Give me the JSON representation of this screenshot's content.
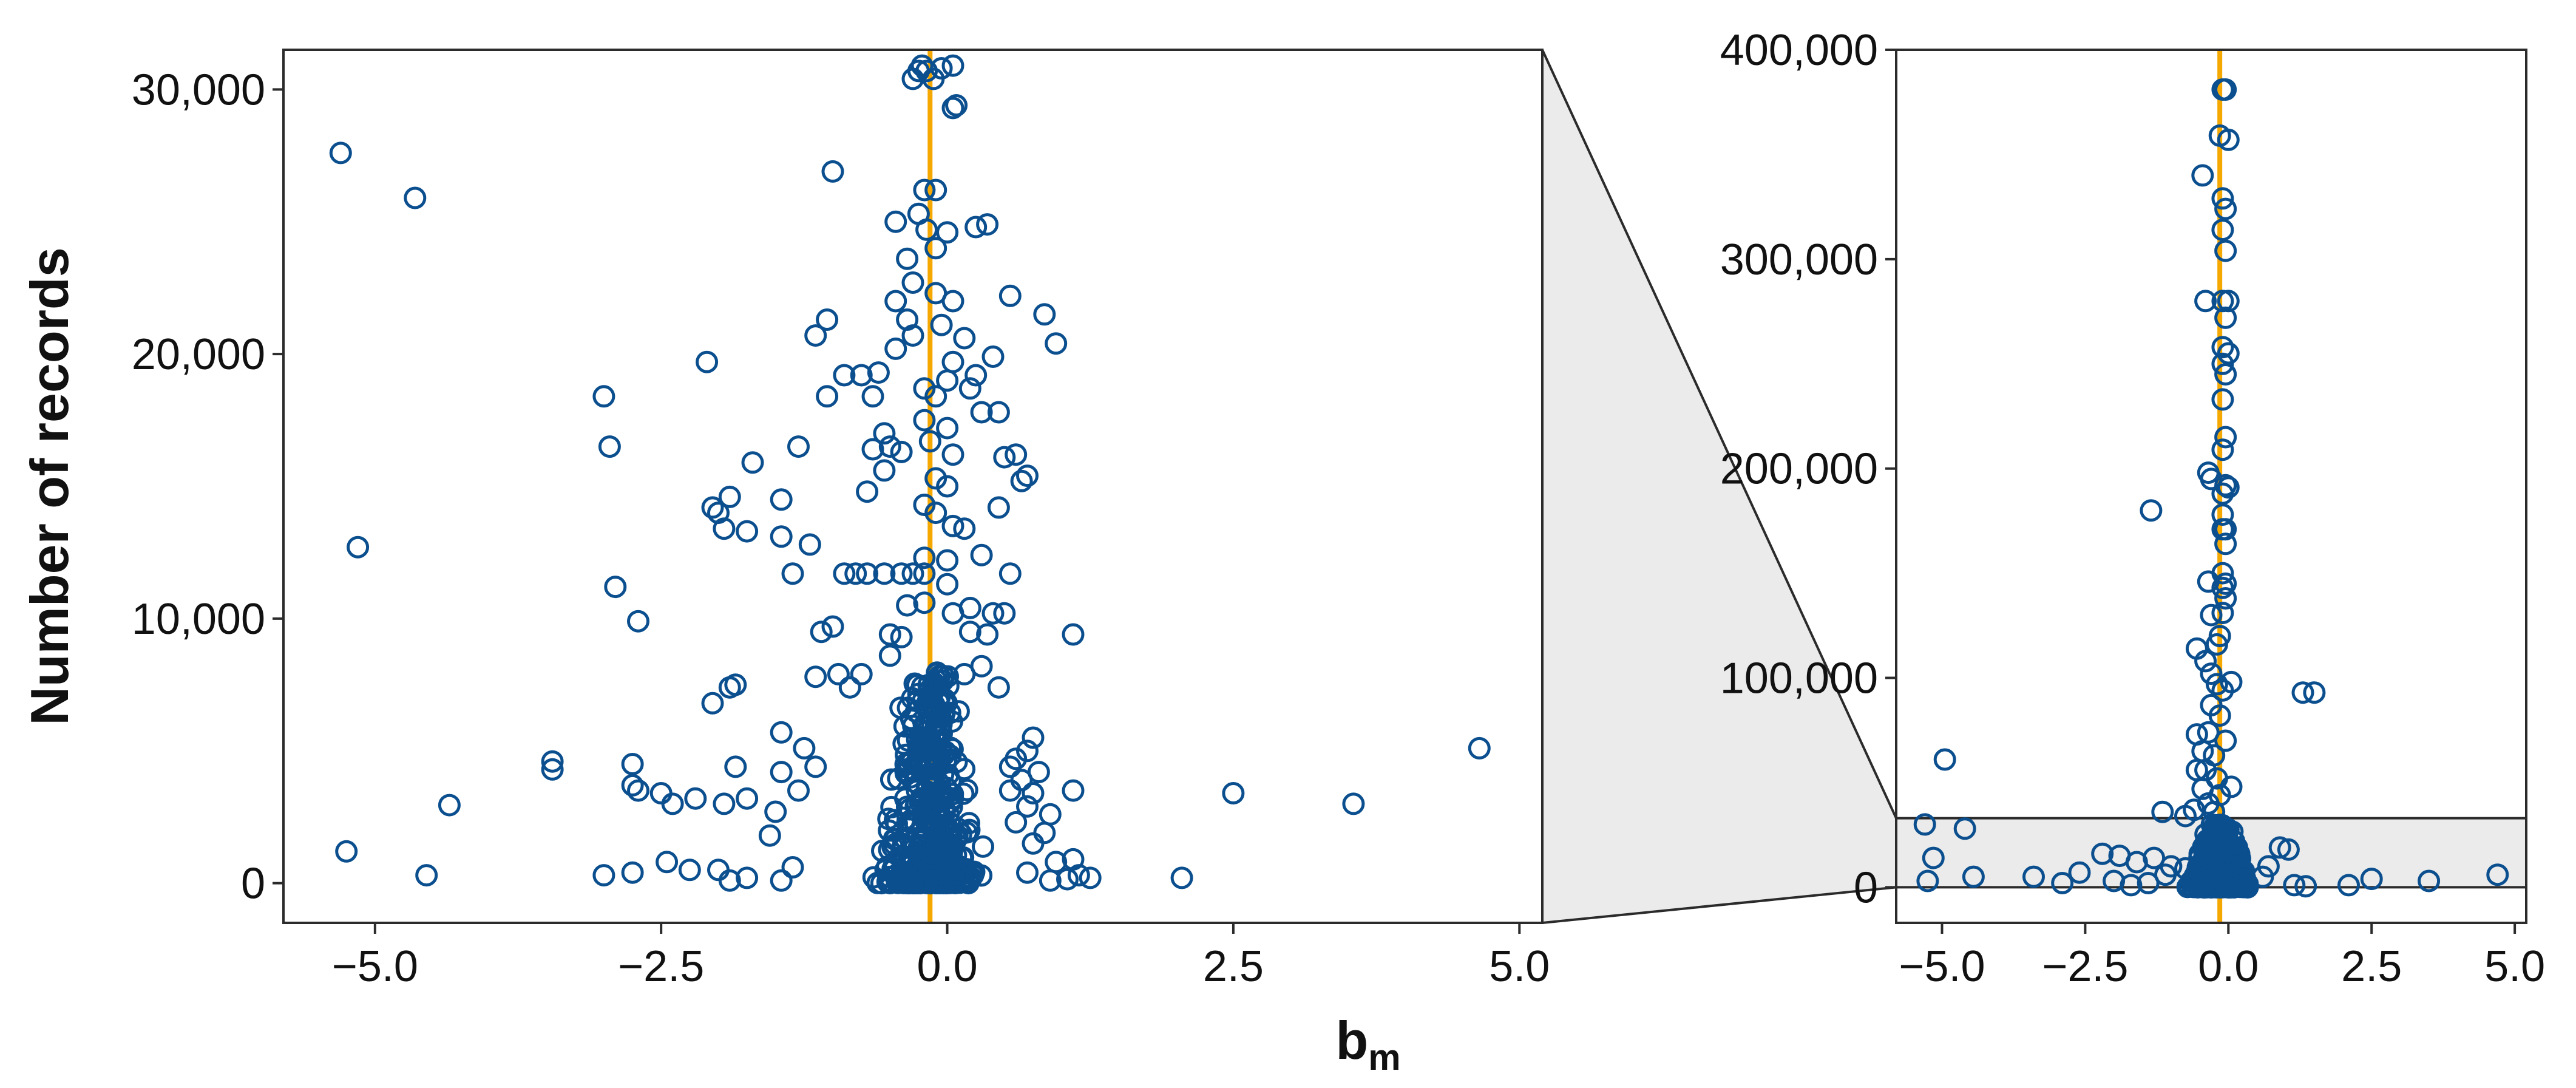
{
  "colors": {
    "points": "#0b4f8f",
    "reference_line": "#f5a800",
    "zoom_fill": "#ebebeb",
    "frame": "#2b2b2b"
  },
  "labels": {
    "ylabel": "Number of records",
    "xlabel_main": "b",
    "xlabel_sub": "m"
  },
  "chart_data": [
    {
      "type": "scatter",
      "panel": "left (zoomed detail)",
      "xlim": [
        -5.8,
        5.2
      ],
      "ylim": [
        -1500,
        31500
      ],
      "x_ticks": [
        -5.0,
        -2.5,
        0.0,
        2.5,
        5.0
      ],
      "x_tick_labels": [
        "−5.0",
        "−2.5",
        "0.0",
        "2.5",
        "5.0"
      ],
      "y_ticks": [
        0,
        10000,
        20000,
        30000
      ],
      "y_tick_labels": [
        "0",
        "10,000",
        "20,000",
        "30,000"
      ],
      "vline_x": -0.15,
      "grid": false,
      "points": [
        [
          -5.3,
          27600
        ],
        [
          -4.65,
          25900
        ],
        [
          -5.15,
          12700
        ],
        [
          -5.25,
          1200
        ],
        [
          -4.55,
          300
        ],
        [
          -4.35,
          2950
        ],
        [
          -3.45,
          4600
        ],
        [
          -3.45,
          4300
        ],
        [
          -3.0,
          18400
        ],
        [
          -2.95,
          16500
        ],
        [
          -2.9,
          11200
        ],
        [
          -2.7,
          9900
        ],
        [
          -2.75,
          4500
        ],
        [
          -2.75,
          3700
        ],
        [
          -2.7,
          3500
        ],
        [
          -2.5,
          3400
        ],
        [
          -2.4,
          3000
        ],
        [
          -2.2,
          3200
        ],
        [
          -2.75,
          400
        ],
        [
          -3.0,
          300
        ],
        [
          -2.45,
          800
        ],
        [
          -2.25,
          500
        ],
        [
          -2.1,
          19700
        ],
        [
          -2.05,
          14200
        ],
        [
          -2.0,
          14000
        ],
        [
          -1.95,
          13400
        ],
        [
          -1.9,
          14600
        ],
        [
          -1.75,
          13300
        ],
        [
          -1.7,
          15900
        ],
        [
          -1.9,
          7400
        ],
        [
          -1.85,
          7500
        ],
        [
          -2.05,
          6800
        ],
        [
          -1.85,
          4400
        ],
        [
          -1.75,
          3200
        ],
        [
          -1.95,
          3000
        ],
        [
          -2.0,
          500
        ],
        [
          -1.9,
          100
        ],
        [
          -1.75,
          200
        ],
        [
          -1.45,
          14500
        ],
        [
          -1.45,
          13100
        ],
        [
          -1.35,
          11700
        ],
        [
          -1.3,
          16500
        ],
        [
          -1.15,
          20700
        ],
        [
          -1.05,
          21300
        ],
        [
          -1.0,
          26900
        ],
        [
          -1.05,
          18400
        ],
        [
          -0.9,
          19200
        ],
        [
          -0.75,
          19200
        ],
        [
          -0.65,
          18400
        ],
        [
          -0.6,
          19300
        ],
        [
          -0.55,
          17000
        ],
        [
          -0.5,
          16500
        ],
        [
          -0.65,
          16400
        ],
        [
          -0.4,
          16300
        ],
        [
          -0.55,
          15600
        ],
        [
          -0.7,
          14800
        ],
        [
          -0.45,
          25000
        ],
        [
          -0.35,
          23600
        ],
        [
          -0.3,
          22700
        ],
        [
          -0.45,
          22000
        ],
        [
          -0.35,
          21300
        ],
        [
          -0.25,
          25300
        ],
        [
          -0.45,
          20200
        ],
        [
          -0.3,
          20700
        ],
        [
          -1.2,
          12800
        ],
        [
          -0.9,
          11700
        ],
        [
          -0.8,
          11700
        ],
        [
          -0.7,
          11700
        ],
        [
          -0.55,
          11700
        ],
        [
          -0.4,
          11700
        ],
        [
          -0.3,
          11700
        ],
        [
          -1.0,
          9700
        ],
        [
          -1.1,
          9500
        ],
        [
          -1.15,
          7800
        ],
        [
          -0.95,
          7900
        ],
        [
          -0.75,
          7900
        ],
        [
          -0.85,
          7400
        ],
        [
          -0.5,
          9400
        ],
        [
          -0.4,
          9300
        ],
        [
          -0.35,
          10500
        ],
        [
          -0.5,
          8600
        ],
        [
          -1.45,
          5700
        ],
        [
          -1.25,
          5100
        ],
        [
          -1.45,
          4200
        ],
        [
          -1.15,
          4400
        ],
        [
          -1.3,
          3500
        ],
        [
          -1.5,
          2700
        ],
        [
          -1.55,
          1800
        ],
        [
          -1.35,
          600
        ],
        [
          -1.45,
          100
        ],
        [
          -0.25,
          30700
        ],
        [
          -0.22,
          30900
        ],
        [
          -0.18,
          30700
        ],
        [
          -0.12,
          30400
        ],
        [
          -0.05,
          30800
        ],
        [
          0.05,
          30900
        ],
        [
          0.08,
          29400
        ],
        [
          0.05,
          29300
        ],
        [
          -0.3,
          30400
        ],
        [
          -0.2,
          26200
        ],
        [
          -0.1,
          26200
        ],
        [
          -0.18,
          24700
        ],
        [
          -0.1,
          24000
        ],
        [
          0.0,
          24600
        ],
        [
          -0.1,
          22300
        ],
        [
          0.05,
          22000
        ],
        [
          -0.05,
          21100
        ],
        [
          0.05,
          19700
        ],
        [
          0.0,
          19000
        ],
        [
          -0.1,
          18400
        ],
        [
          -0.2,
          18700
        ],
        [
          -0.2,
          17500
        ],
        [
          0.0,
          17200
        ],
        [
          -0.15,
          16700
        ],
        [
          0.05,
          16200
        ],
        [
          -0.1,
          15300
        ],
        [
          0.0,
          15000
        ],
        [
          -0.2,
          14300
        ],
        [
          -0.1,
          14000
        ],
        [
          0.05,
          13500
        ],
        [
          -0.2,
          12300
        ],
        [
          0.0,
          12200
        ],
        [
          -0.2,
          11700
        ],
        [
          0.0,
          11300
        ],
        [
          -0.2,
          10600
        ],
        [
          0.05,
          10200
        ],
        [
          0.15,
          13400
        ],
        [
          0.25,
          24800
        ],
        [
          0.35,
          24900
        ],
        [
          0.15,
          20600
        ],
        [
          0.25,
          19200
        ],
        [
          0.4,
          19900
        ],
        [
          0.2,
          18700
        ],
        [
          0.3,
          17800
        ],
        [
          0.45,
          17800
        ],
        [
          0.5,
          16100
        ],
        [
          0.6,
          16200
        ],
        [
          0.55,
          22200
        ],
        [
          0.85,
          21500
        ],
        [
          0.95,
          20400
        ],
        [
          0.7,
          15400
        ],
        [
          0.65,
          15200
        ],
        [
          0.45,
          14200
        ],
        [
          0.3,
          12400
        ],
        [
          0.55,
          11700
        ],
        [
          0.2,
          10400
        ],
        [
          0.4,
          10200
        ],
        [
          0.5,
          10200
        ],
        [
          0.2,
          9500
        ],
        [
          0.35,
          9400
        ],
        [
          1.1,
          9400
        ],
        [
          0.3,
          8200
        ],
        [
          0.15,
          7900
        ],
        [
          0.45,
          7400
        ],
        [
          0.75,
          5500
        ],
        [
          0.7,
          5000
        ],
        [
          0.6,
          4700
        ],
        [
          0.55,
          4400
        ],
        [
          0.8,
          4200
        ],
        [
          0.65,
          3900
        ],
        [
          0.55,
          3500
        ],
        [
          0.75,
          3400
        ],
        [
          1.1,
          3500
        ],
        [
          0.7,
          2900
        ],
        [
          0.9,
          2600
        ],
        [
          0.6,
          2300
        ],
        [
          0.85,
          1900
        ],
        [
          0.75,
          1500
        ],
        [
          0.95,
          800
        ],
        [
          1.1,
          900
        ],
        [
          1.15,
          300
        ],
        [
          1.25,
          200
        ],
        [
          1.05,
          150
        ],
        [
          0.9,
          100
        ],
        [
          0.7,
          400
        ],
        [
          2.05,
          200
        ],
        [
          2.5,
          3400
        ],
        [
          3.55,
          3000
        ],
        [
          4.65,
          5100
        ]
      ],
      "dense_cluster": {
        "x_center": -0.15,
        "x_spread": 0.45,
        "y_max": 8000,
        "count": 420
      }
    },
    {
      "type": "scatter",
      "panel": "right (full range)",
      "xlim": [
        -5.8,
        5.2
      ],
      "ylim": [
        -17000,
        400000
      ],
      "x_ticks": [
        -5.0,
        -2.5,
        0.0,
        2.5,
        5.0
      ],
      "x_tick_labels": [
        "−5.0",
        "−2.5",
        "0.0",
        "2.5",
        "5.0"
      ],
      "y_ticks": [
        0,
        100000,
        200000,
        300000,
        400000
      ],
      "y_tick_labels": [
        "0",
        "100,000",
        "200,000",
        "300,000",
        "400,000"
      ],
      "vline_x": -0.15,
      "zoom_region_y": [
        0,
        33000
      ],
      "grid": false,
      "points": [
        [
          -0.05,
          381000
        ],
        [
          -0.1,
          381000
        ],
        [
          -0.15,
          359000
        ],
        [
          0.0,
          357000
        ],
        [
          -0.45,
          340000
        ],
        [
          -0.1,
          329000
        ],
        [
          -0.05,
          324000
        ],
        [
          -0.1,
          314000
        ],
        [
          -0.05,
          304000
        ],
        [
          -0.1,
          280000
        ],
        [
          0.0,
          280000
        ],
        [
          -0.4,
          280000
        ],
        [
          -0.05,
          272000
        ],
        [
          -0.1,
          258000
        ],
        [
          -0.1,
          250000
        ],
        [
          0.0,
          255000
        ],
        [
          -0.05,
          245000
        ],
        [
          -0.1,
          233000
        ],
        [
          -0.05,
          215000
        ],
        [
          -0.1,
          209000
        ],
        [
          -0.35,
          198000
        ],
        [
          -0.3,
          195000
        ],
        [
          0.0,
          191000
        ],
        [
          -0.05,
          192000
        ],
        [
          -0.1,
          188000
        ],
        [
          -1.35,
          180000
        ],
        [
          -0.1,
          178000
        ],
        [
          -0.05,
          171000
        ],
        [
          -0.1,
          171000
        ],
        [
          -0.05,
          164000
        ],
        [
          -0.1,
          150000
        ],
        [
          -0.05,
          145000
        ],
        [
          -0.35,
          146000
        ],
        [
          -0.1,
          143000
        ],
        [
          -0.05,
          138000
        ],
        [
          -0.1,
          131000
        ],
        [
          -0.3,
          130000
        ],
        [
          -0.15,
          120000
        ],
        [
          -0.2,
          116000
        ],
        [
          -0.55,
          114000
        ],
        [
          -0.4,
          108000
        ],
        [
          -0.3,
          102000
        ],
        [
          -0.2,
          97000
        ],
        [
          0.05,
          98000
        ],
        [
          -0.1,
          94000
        ],
        [
          -0.3,
          87000
        ],
        [
          -0.15,
          82000
        ],
        [
          -0.55,
          73000
        ],
        [
          -0.35,
          74000
        ],
        [
          -0.05,
          70000
        ],
        [
          -0.45,
          65000
        ],
        [
          -0.25,
          63000
        ],
        [
          -0.4,
          56000
        ],
        [
          -0.55,
          56000
        ],
        [
          -0.2,
          52000
        ],
        [
          0.05,
          48000
        ],
        [
          -0.45,
          47000
        ],
        [
          -0.15,
          44000
        ],
        [
          -0.35,
          40000
        ],
        [
          -0.6,
          37000
        ],
        [
          -0.25,
          36000
        ],
        [
          -0.75,
          34000
        ],
        [
          -1.15,
          36000
        ],
        [
          1.3,
          93000
        ],
        [
          1.5,
          93000
        ],
        [
          -4.95,
          61000
        ],
        [
          -5.3,
          30000
        ],
        [
          -4.6,
          28000
        ],
        [
          -5.15,
          14000
        ],
        [
          -5.25,
          3000
        ],
        [
          -4.45,
          5000
        ],
        [
          -3.4,
          5000
        ],
        [
          -2.9,
          2000
        ],
        [
          -2.6,
          7000
        ],
        [
          -2.2,
          16000
        ],
        [
          -1.9,
          15000
        ],
        [
          -1.6,
          12000
        ],
        [
          -1.3,
          14000
        ],
        [
          -1.0,
          10000
        ],
        [
          -0.75,
          9000
        ],
        [
          -2.0,
          3000
        ],
        [
          -1.7,
          1000
        ],
        [
          -1.4,
          2000
        ],
        [
          -1.1,
          6000
        ],
        [
          0.9,
          19000
        ],
        [
          1.05,
          18000
        ],
        [
          0.7,
          10000
        ],
        [
          0.6,
          5000
        ],
        [
          1.15,
          1000
        ],
        [
          1.35,
          500
        ],
        [
          2.1,
          1000
        ],
        [
          2.5,
          4000
        ],
        [
          3.5,
          3000
        ],
        [
          4.7,
          6000
        ]
      ],
      "dense_cluster": {
        "x_center": -0.15,
        "x_spread": 0.5,
        "y_max": 30000,
        "count": 350
      }
    }
  ]
}
